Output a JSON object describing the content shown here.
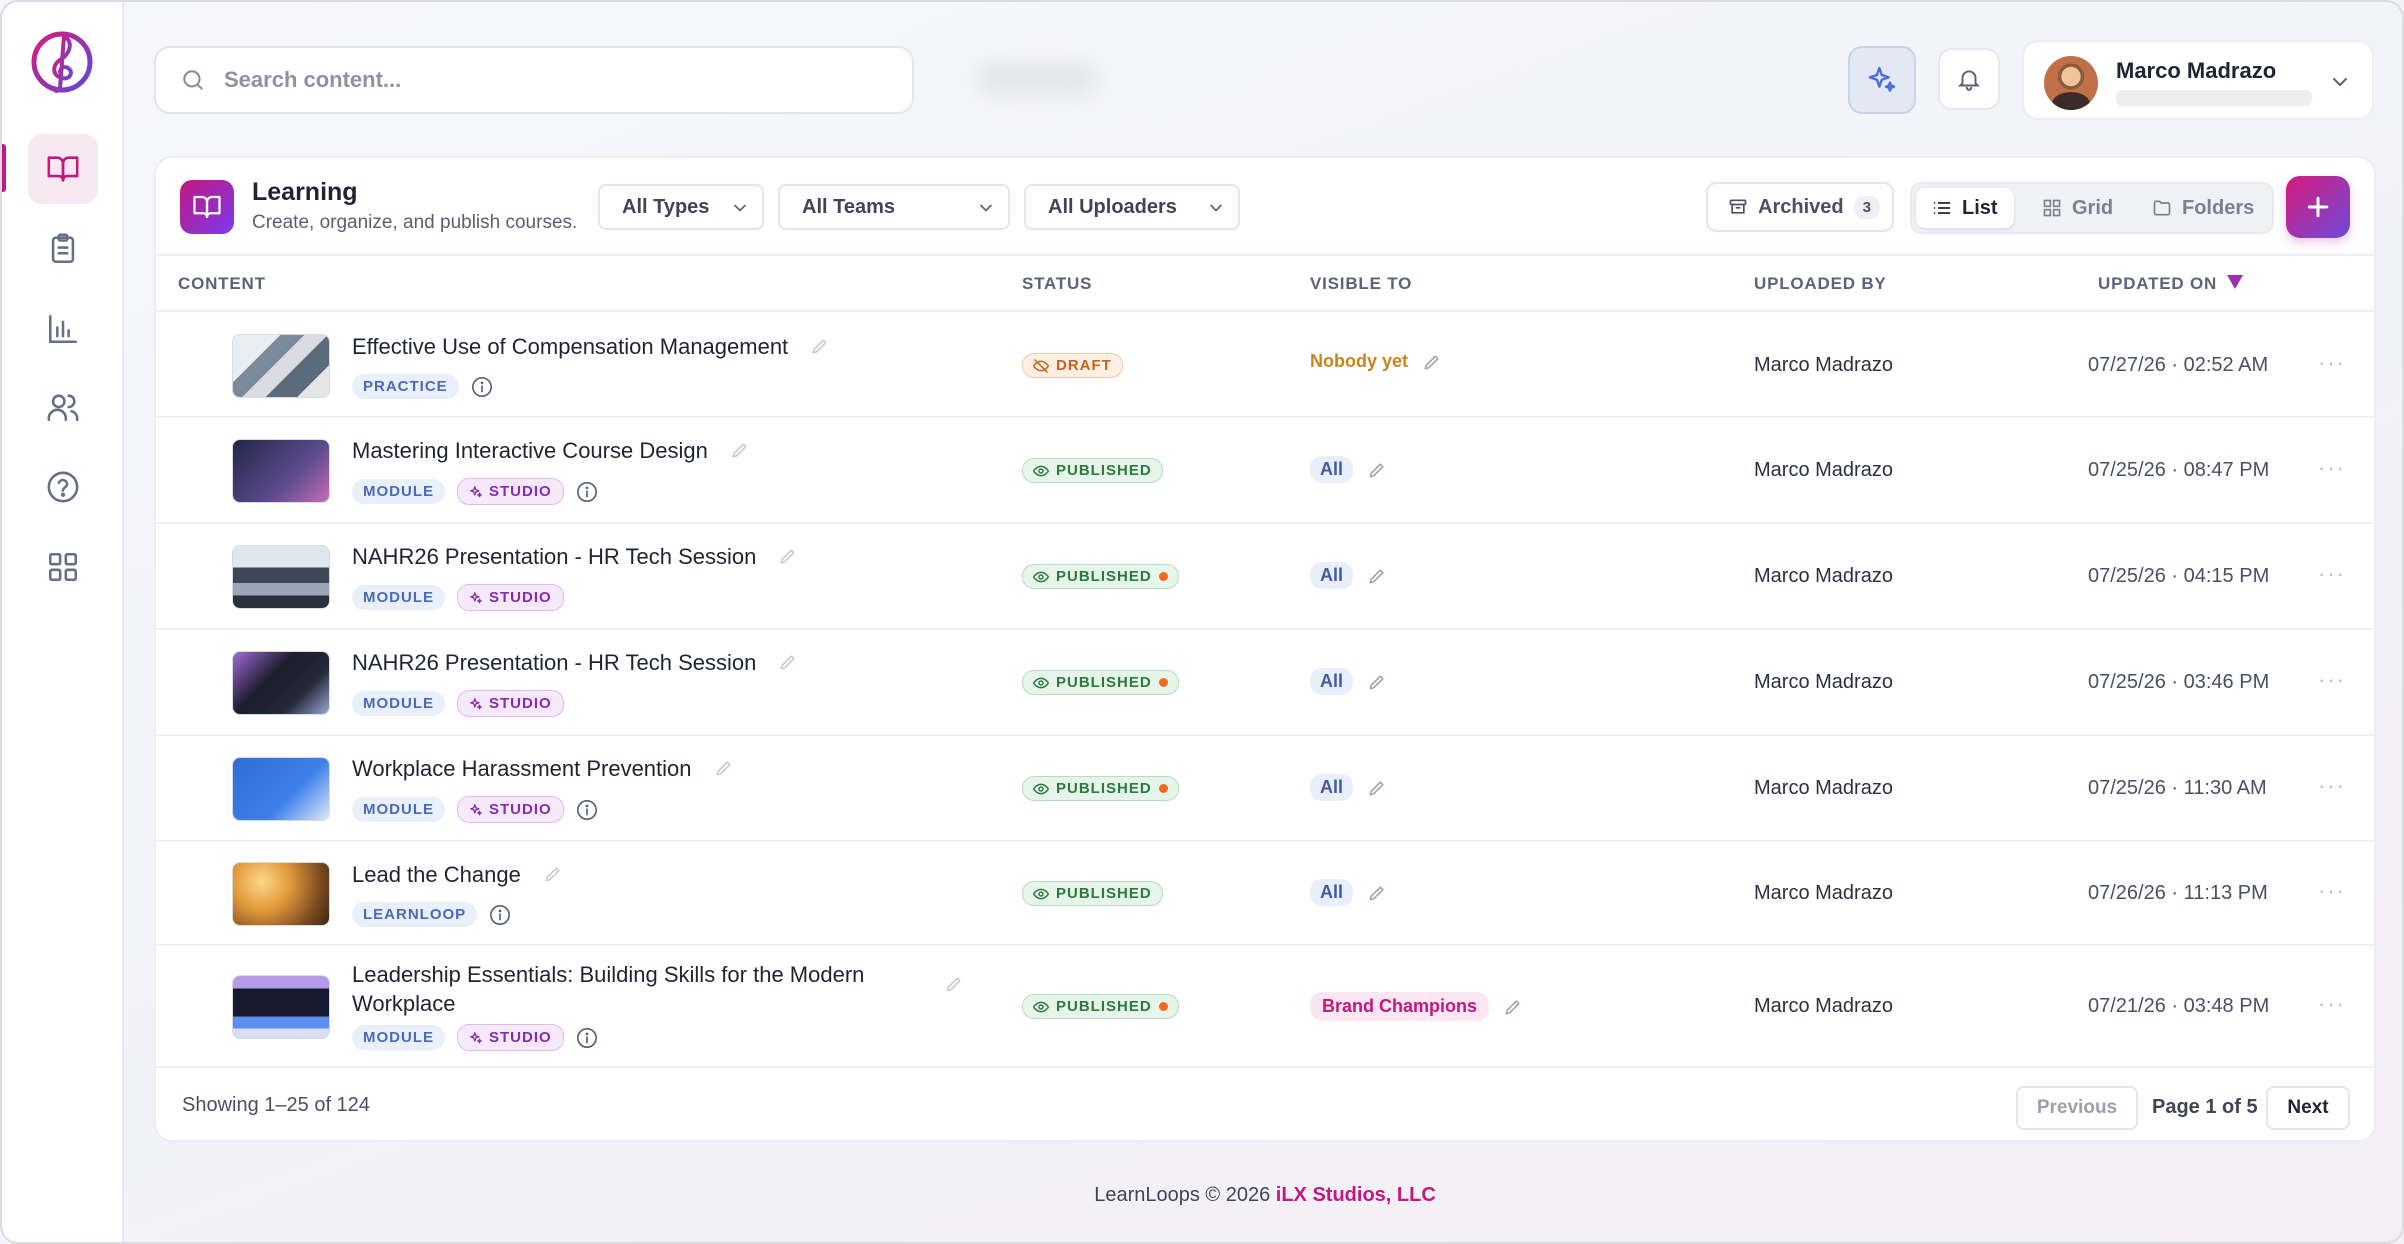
{
  "app": {
    "footer_text": "LearnLoops © 2026",
    "footer_brand": "iLX Studios, LLC"
  },
  "sidebar": {
    "items": [
      {
        "name": "learning",
        "icon": "book-open-icon",
        "active": true
      },
      {
        "name": "assignments",
        "icon": "clipboard-icon",
        "active": false
      },
      {
        "name": "reports",
        "icon": "bar-chart-icon",
        "active": false
      },
      {
        "name": "users",
        "icon": "users-icon",
        "active": false
      },
      {
        "name": "help",
        "icon": "help-circle-icon",
        "active": false
      },
      {
        "name": "apps",
        "icon": "grid-icon",
        "active": false
      }
    ]
  },
  "header": {
    "search_placeholder": "Search content...",
    "user_name": "Marco Madrazo"
  },
  "page": {
    "title": "Learning",
    "subtitle": "Create, organize, and publish courses.",
    "filters": {
      "types": "All Types",
      "teams": "All Teams",
      "uploaders": "All Uploaders"
    },
    "archived_label": "Archived",
    "archived_count": "3",
    "views": {
      "list": "List",
      "grid": "Grid",
      "folders": "Folders",
      "active": "list"
    }
  },
  "table": {
    "columns": {
      "content": "CONTENT",
      "status": "STATUS",
      "visible_to": "VISIBLE TO",
      "uploaded_by": "UPLOADED BY",
      "updated_on": "UPDATED ON"
    },
    "rows": [
      {
        "title": "Effective Use of Compensation Management",
        "tags": [
          "PRACTICE"
        ],
        "studio": false,
        "info": true,
        "status": "DRAFT",
        "status_dot": false,
        "visible": "Nobody yet",
        "visible_style": "nobody",
        "uploader": "Marco Madrazo",
        "updated": "07/27/26 · 02:52 AM"
      },
      {
        "title": "Mastering Interactive Course Design",
        "tags": [
          "MODULE"
        ],
        "studio": true,
        "info": true,
        "status": "PUBLISHED",
        "status_dot": false,
        "visible": "All",
        "visible_style": "all",
        "uploader": "Marco Madrazo",
        "updated": "07/25/26 · 08:47 PM"
      },
      {
        "title": "NAHR26 Presentation - HR Tech Session",
        "tags": [
          "MODULE"
        ],
        "studio": true,
        "info": false,
        "status": "PUBLISHED",
        "status_dot": true,
        "visible": "All",
        "visible_style": "all",
        "uploader": "Marco Madrazo",
        "updated": "07/25/26 · 04:15 PM"
      },
      {
        "title": "NAHR26 Presentation - HR Tech Session",
        "tags": [
          "MODULE"
        ],
        "studio": true,
        "info": false,
        "status": "PUBLISHED",
        "status_dot": true,
        "visible": "All",
        "visible_style": "all",
        "uploader": "Marco Madrazo",
        "updated": "07/25/26 · 03:46 PM"
      },
      {
        "title": "Workplace Harassment Prevention",
        "tags": [
          "MODULE"
        ],
        "studio": true,
        "info": true,
        "status": "PUBLISHED",
        "status_dot": true,
        "visible": "All",
        "visible_style": "all",
        "uploader": "Marco Madrazo",
        "updated": "07/25/26 · 11:30 AM"
      },
      {
        "title": "Lead the Change",
        "tags": [
          "LEARNLOOP"
        ],
        "studio": false,
        "info": true,
        "status": "PUBLISHED",
        "status_dot": false,
        "visible": "All",
        "visible_style": "all",
        "uploader": "Marco Madrazo",
        "updated": "07/26/26 · 11:13 PM"
      },
      {
        "title": "Leadership Essentials: Building Skills for the Modern",
        "title2": "Workplace",
        "tags": [
          "MODULE"
        ],
        "studio": true,
        "info": true,
        "status": "PUBLISHED",
        "status_dot": true,
        "visible": "Brand Champions",
        "visible_style": "brand",
        "uploader": "Marco Madrazo",
        "updated": "07/21/26 · 03:48 PM"
      }
    ],
    "studio_label": "STUDIO"
  },
  "pagination": {
    "showing": "Showing 1–25 of 124",
    "previous": "Previous",
    "page_info": "Page 1 of 5",
    "next": "Next"
  },
  "colors": {
    "accent": "#c2187f",
    "accent2": "#7c3aed",
    "published": "#2b7a3f",
    "draft": "#c5641a"
  }
}
